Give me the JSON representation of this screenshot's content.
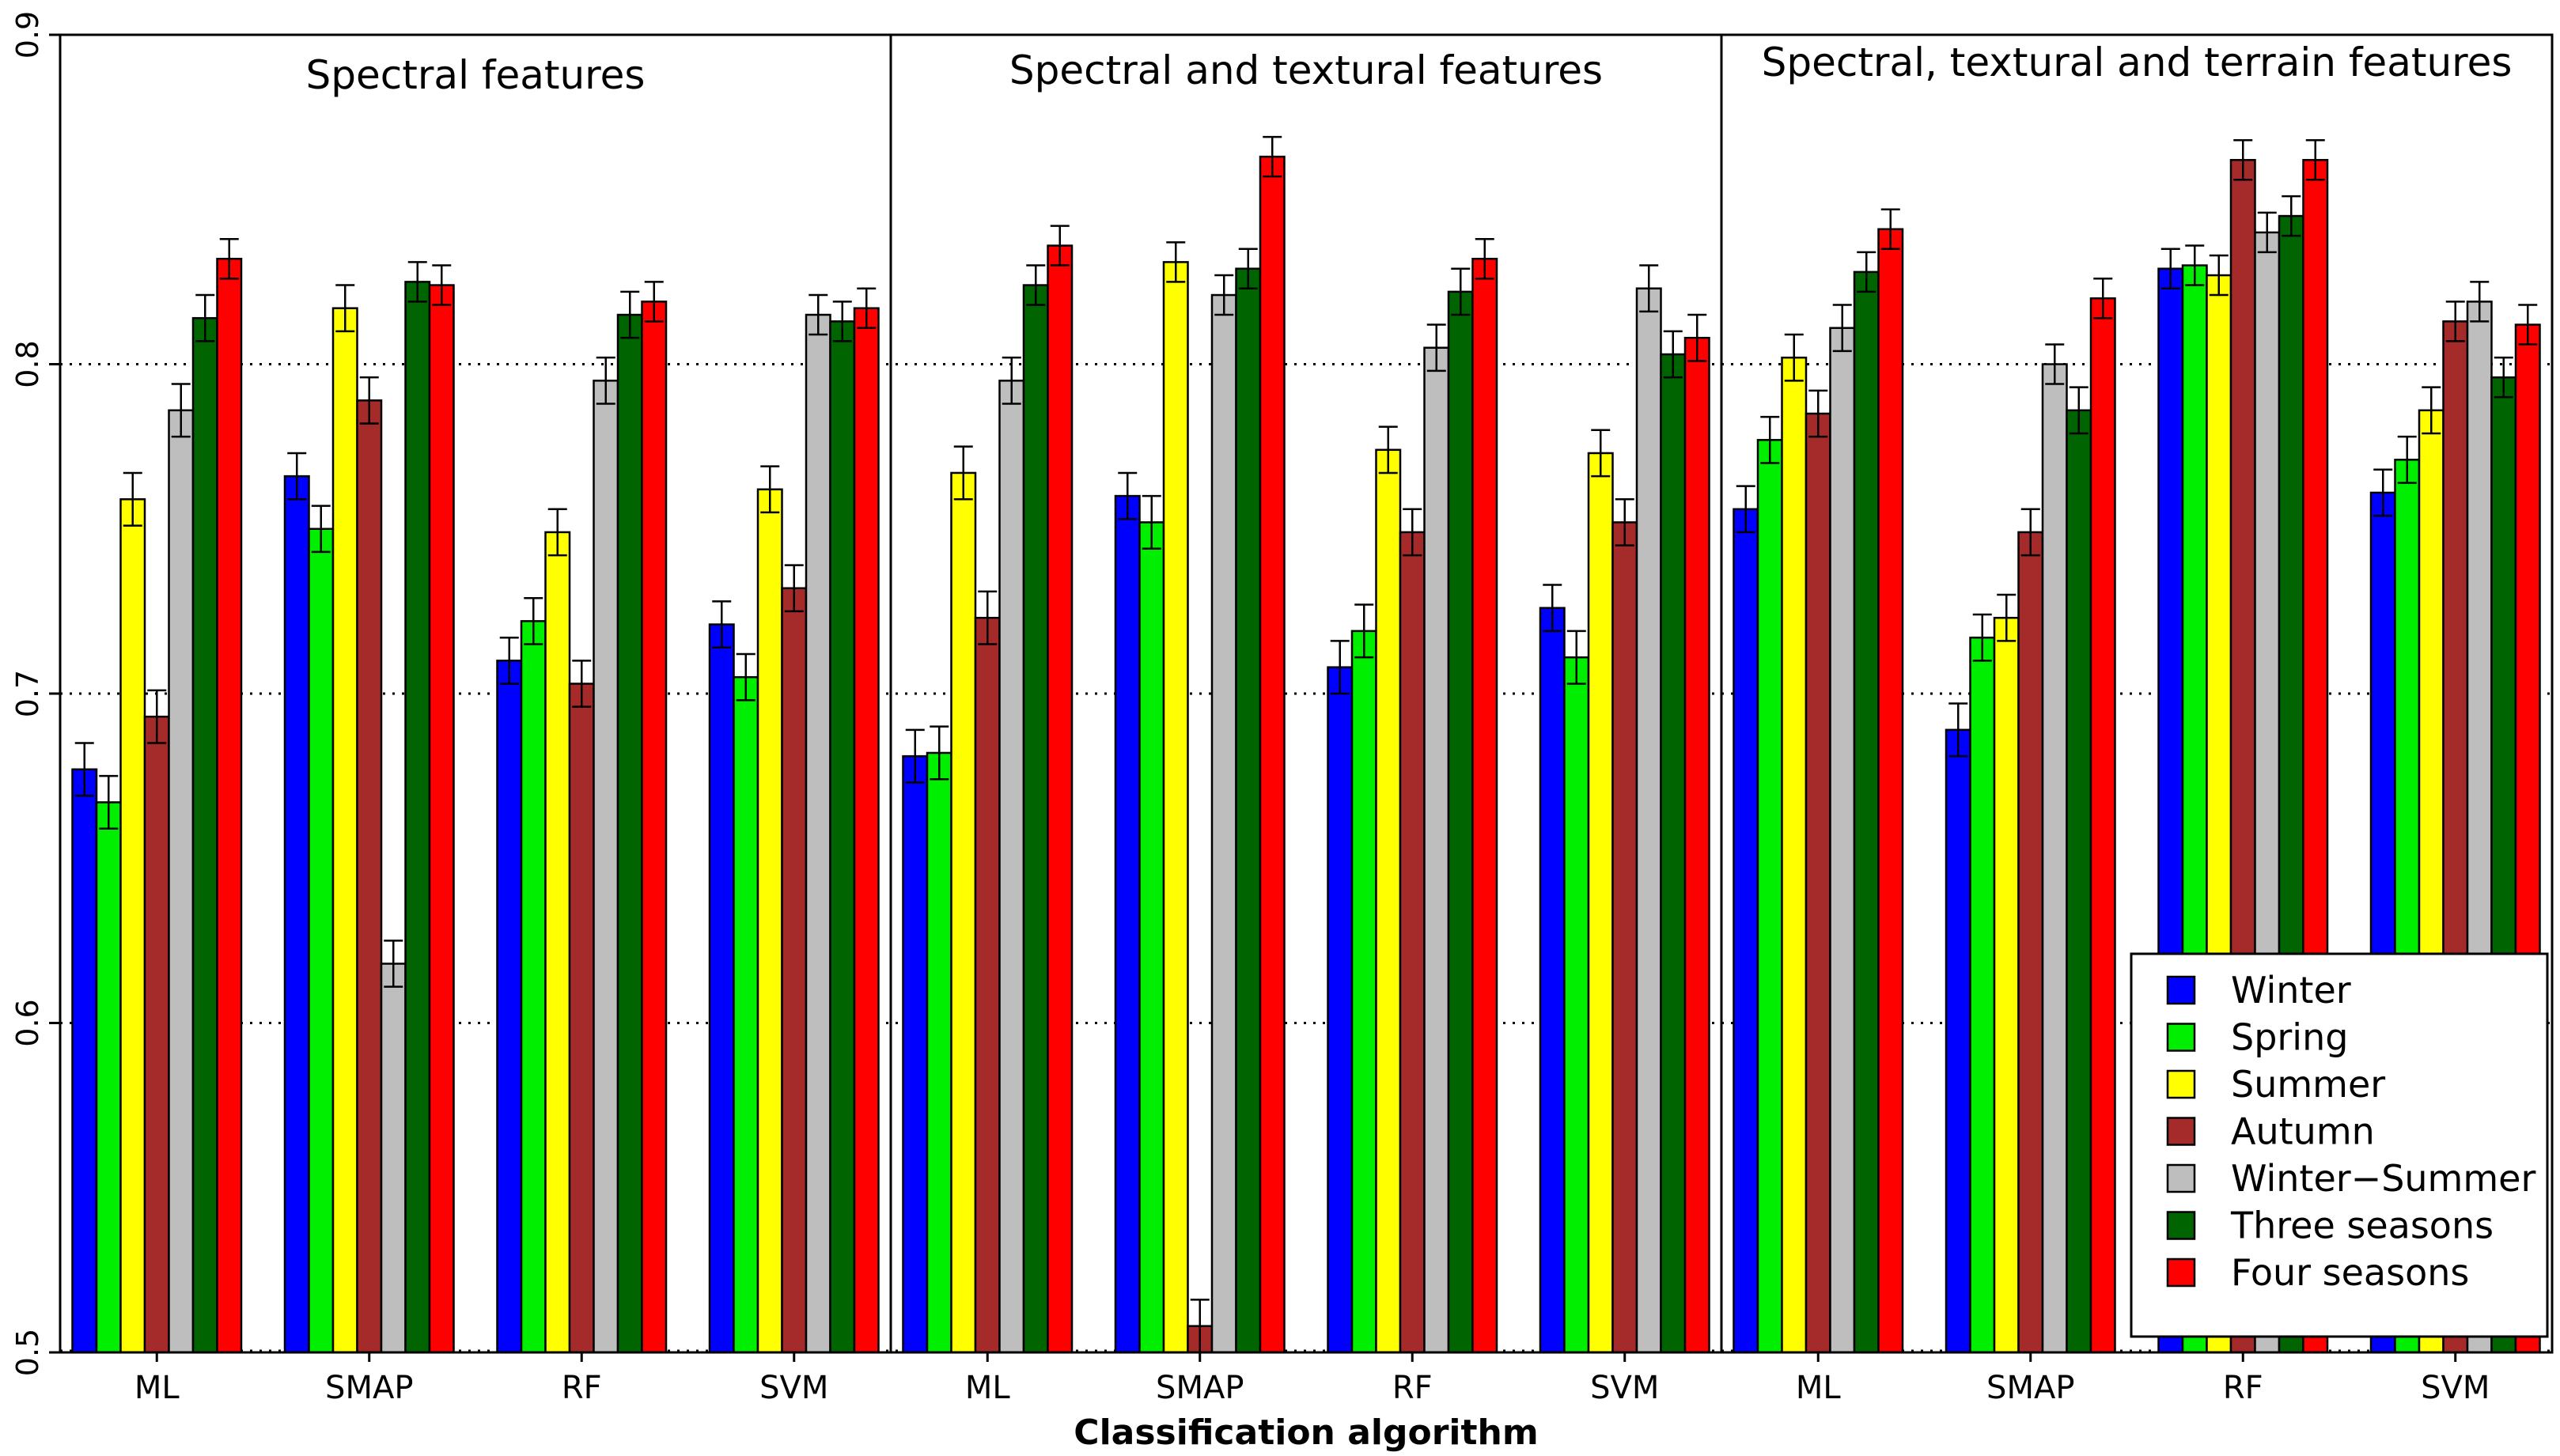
{
  "chart_data": {
    "type": "bar",
    "xlabel": "Classification algorithm",
    "ylabel": "",
    "ylim": [
      0.5,
      0.9
    ],
    "yticks": [
      "0.5",
      "0.6",
      "0.7",
      "0.8",
      "0.9"
    ],
    "grid": "horizontal dotted",
    "legend_position": "bottom-right",
    "series_names": [
      "Winter",
      "Spring",
      "Summer",
      "Autumn",
      "Winter−Summer",
      "Three seasons",
      "Four seasons"
    ],
    "series_colors": [
      "#0000ff",
      "#00ee00",
      "#ffff00",
      "#a52a2a",
      "#bebebe",
      "#006400",
      "#ff0000"
    ],
    "panels": [
      {
        "title": "Spectral features",
        "categories": [
          "ML",
          "SMAP",
          "RF",
          "SVM"
        ],
        "values": [
          [
            0.677,
            0.667,
            0.759,
            0.693,
            0.786,
            0.814,
            0.832
          ],
          [
            0.766,
            0.75,
            0.817,
            0.789,
            0.618,
            0.825,
            0.824
          ],
          [
            0.71,
            0.722,
            0.749,
            0.703,
            0.795,
            0.815,
            0.819
          ],
          [
            0.721,
            0.705,
            0.762,
            0.732,
            0.815,
            0.813,
            0.817
          ]
        ],
        "errors": [
          [
            0.008,
            0.008,
            0.008,
            0.008,
            0.008,
            0.007,
            0.006
          ],
          [
            0.007,
            0.007,
            0.007,
            0.007,
            0.007,
            0.006,
            0.006
          ],
          [
            0.007,
            0.007,
            0.007,
            0.007,
            0.007,
            0.007,
            0.006
          ],
          [
            0.007,
            0.007,
            0.007,
            0.007,
            0.006,
            0.006,
            0.006
          ]
        ]
      },
      {
        "title": "Spectral and textural features",
        "categories": [
          "ML",
          "SMAP",
          "RF",
          "SVM"
        ],
        "values": [
          [
            0.681,
            0.682,
            0.767,
            0.723,
            0.795,
            0.824,
            0.836
          ],
          [
            0.76,
            0.752,
            0.831,
            0.508,
            0.821,
            0.829,
            0.863
          ],
          [
            0.708,
            0.719,
            0.774,
            0.749,
            0.805,
            0.822,
            0.832
          ],
          [
            0.726,
            0.711,
            0.773,
            0.752,
            0.823,
            0.803,
            0.808
          ]
        ],
        "errors": [
          [
            0.008,
            0.008,
            0.008,
            0.008,
            0.007,
            0.006,
            0.006
          ],
          [
            0.007,
            0.008,
            0.006,
            0.008,
            0.006,
            0.006,
            0.006
          ],
          [
            0.008,
            0.008,
            0.007,
            0.007,
            0.007,
            0.007,
            0.006
          ],
          [
            0.007,
            0.008,
            0.007,
            0.007,
            0.007,
            0.007,
            0.007
          ]
        ]
      },
      {
        "title": "Spectral, textural and terrain features",
        "categories": [
          "ML",
          "SMAP",
          "RF",
          "SVM"
        ],
        "values": [
          [
            0.756,
            0.777,
            0.802,
            0.785,
            0.811,
            0.828,
            0.841
          ],
          [
            0.689,
            0.717,
            0.723,
            0.749,
            0.8,
            0.786,
            0.82
          ],
          [
            0.829,
            0.83,
            0.827,
            0.862,
            0.84,
            0.845,
            0.862
          ],
          [
            0.761,
            0.771,
            0.786,
            0.813,
            0.819,
            0.796,
            0.812
          ]
        ],
        "errors": [
          [
            0.007,
            0.007,
            0.007,
            0.007,
            0.007,
            0.006,
            0.006
          ],
          [
            0.008,
            0.007,
            0.007,
            0.007,
            0.006,
            0.007,
            0.006
          ],
          [
            0.006,
            0.006,
            0.006,
            0.006,
            0.006,
            0.006,
            0.006
          ],
          [
            0.007,
            0.007,
            0.007,
            0.006,
            0.006,
            0.006,
            0.006
          ]
        ]
      }
    ]
  }
}
